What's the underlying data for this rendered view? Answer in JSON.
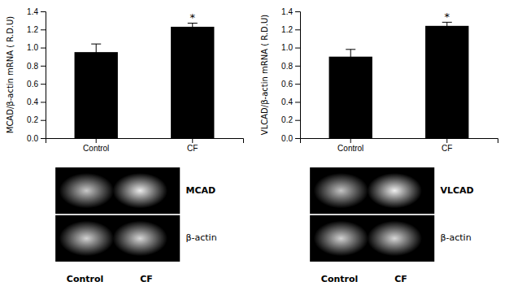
{
  "chart_data": [
    {
      "type": "bar",
      "categories": [
        "Control",
        "CF"
      ],
      "values": [
        0.95,
        1.23
      ],
      "errors": [
        0.09,
        0.04
      ],
      "color": "#000000",
      "y_label": "MCAD/β-actin mRNA ( R.D.U)",
      "ylim": [
        0.0,
        1.4
      ],
      "yticks": [
        {
          "value": 0.0,
          "label": "0.0"
        },
        0.2,
        0.4,
        0.6,
        0.8,
        {
          "value": 1.0,
          "label": "1.0"
        },
        1.2,
        1.4
      ],
      "grid": false,
      "annotations": [
        {
          "text": "*",
          "category": "CF"
        }
      ],
      "gel_labels": [
        "MCAD",
        "β-actin"
      ],
      "gel_lane_labels": [
        "Control",
        "CF"
      ],
      "band_intensities": [
        [
          200,
          235
        ],
        [
          210,
          215
        ]
      ],
      "intensity_range": [
        0,
        255
      ]
    },
    {
      "type": "bar",
      "categories": [
        "Control",
        "CF"
      ],
      "values": [
        0.9,
        1.24
      ],
      "errors": [
        0.08,
        0.04
      ],
      "color": "#000000",
      "y_label": "VLCAD/β-actin mRNA ( R.D.U)",
      "ylim": [
        0.0,
        1.4
      ],
      "yticks": [
        {
          "value": 0.0,
          "label": "0.0"
        },
        0.2,
        0.4,
        0.6,
        0.8,
        {
          "value": 1.0,
          "label": "1.0"
        },
        1.2,
        1.4
      ],
      "grid": false,
      "annotations": [
        {
          "text": "*",
          "category": "CF"
        }
      ],
      "gel_labels": [
        "VLCAD",
        "β-actin"
      ],
      "gel_lane_labels": [
        "Control",
        "CF"
      ],
      "band_intensities": [
        [
          195,
          240
        ],
        [
          210,
          215
        ]
      ],
      "intensity_range": [
        0,
        255
      ]
    }
  ]
}
